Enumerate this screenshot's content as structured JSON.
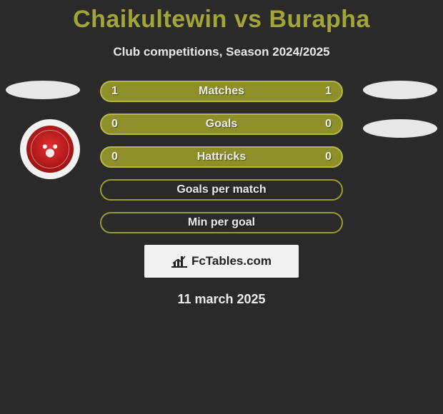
{
  "title": "Chaikultewin vs Burapha",
  "subtitle": "Club competitions, Season 2024/2025",
  "colors": {
    "accent": "#a3a539",
    "row_fill": "#8f8f2a",
    "row_border": "#b6b84a",
    "row_empty_border": "#9a9c33",
    "background": "#2a2a2a",
    "text_light": "#ececec",
    "ellipse": "#e8e8e8",
    "brand_bg": "#f2f2f2",
    "badge_red": "#b01818"
  },
  "rows": [
    {
      "label": "Matches",
      "left": "1",
      "right": "1",
      "filled": true
    },
    {
      "label": "Goals",
      "left": "0",
      "right": "0",
      "filled": true
    },
    {
      "label": "Hattricks",
      "left": "0",
      "right": "0",
      "filled": true
    },
    {
      "label": "Goals per match",
      "left": "",
      "right": "",
      "filled": false
    },
    {
      "label": "Min per goal",
      "left": "",
      "right": "",
      "filled": false
    }
  ],
  "brand": {
    "text": "FcTables.com"
  },
  "footer_date": "11 march 2025"
}
